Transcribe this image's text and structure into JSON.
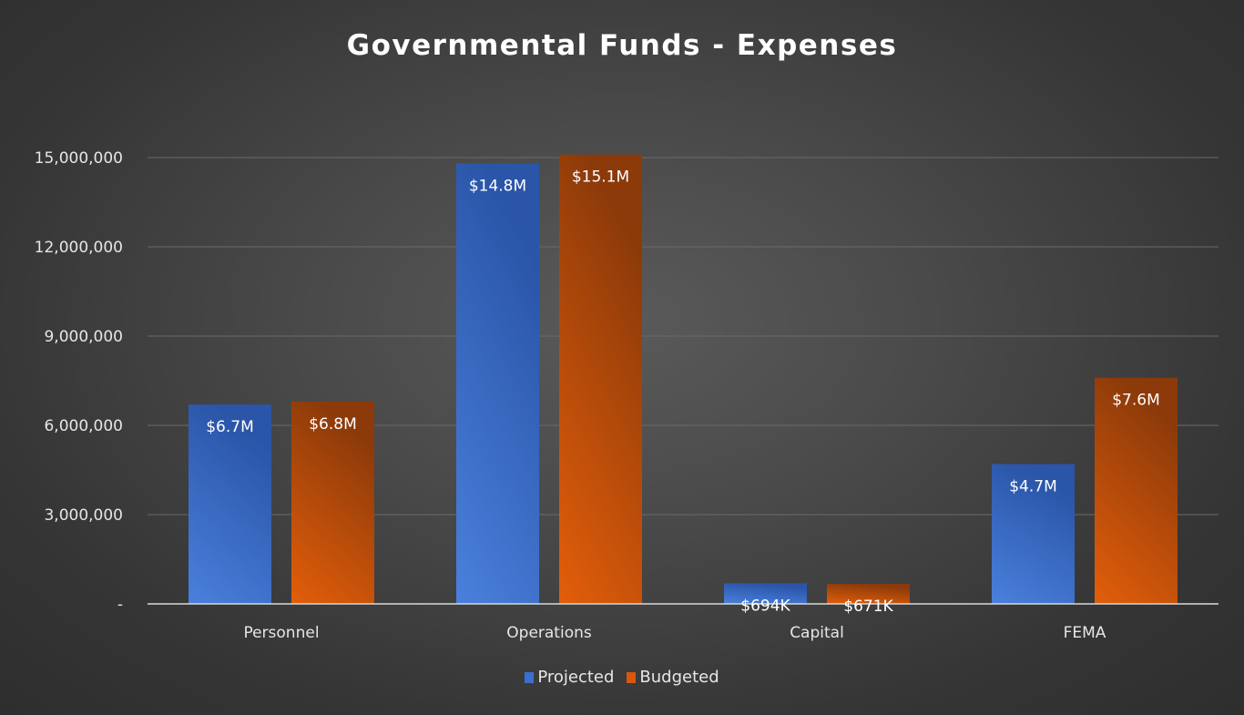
{
  "chart_data": {
    "type": "bar",
    "title": "Governmental Funds - Expenses",
    "categories": [
      "Personnel",
      "Operations",
      "Capital",
      "FEMA"
    ],
    "series": [
      {
        "name": "Projected",
        "color": "#3a6fd0",
        "values": [
          6700000,
          14800000,
          694000,
          4700000
        ],
        "labels": [
          "$6.7M",
          "$14.8M",
          "$694K",
          "$4.7M"
        ]
      },
      {
        "name": "Budgeted",
        "color": "#d9570c",
        "values": [
          6800000,
          15100000,
          671000,
          7600000
        ],
        "labels": [
          "$6.8M",
          "$15.1M",
          "$671K",
          "$7.6M"
        ]
      }
    ],
    "ylim": [
      0,
      15000000
    ],
    "yticks": [
      0,
      3000000,
      6000000,
      9000000,
      12000000,
      15000000
    ],
    "ytick_labels": [
      "-",
      "3,000,000",
      "6,000,000",
      "9,000,000",
      "12,000,000",
      "15,000,000"
    ],
    "grid": true,
    "legend_position": "bottom",
    "xlabel": "",
    "ylabel": ""
  }
}
